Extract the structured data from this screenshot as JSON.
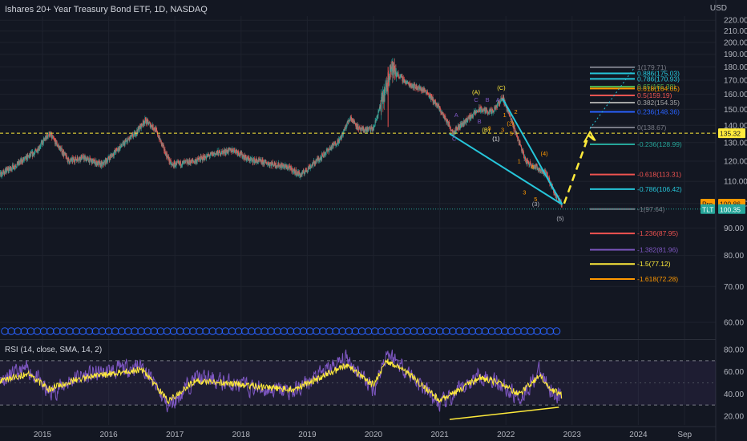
{
  "header": {
    "title": "Ishares 20+ Year Treasury Bond ETF, 1D, NASDAQ",
    "currency": "USD",
    "rsi_title": "RSI (14, close, SMA, 14, 2)"
  },
  "colors": {
    "background": "#131722",
    "grid": "#1e222d",
    "candle_up": "#26a69a",
    "candle_down": "#ef5350",
    "wedge": "#26c6da",
    "wave_orange": "#ff9800",
    "wave_yellow": "#ffeb3b",
    "wave_purple": "#7e57c2",
    "rsi_line": "#7e57c2",
    "rsi_ma": "#ffeb3b",
    "projection": "#ffeb3b",
    "last_price_tag": "#26a69a",
    "pre_tag": "#ff9800",
    "event_circles": "#2962ff"
  },
  "chart_data": [
    {
      "type": "line",
      "title": "Ishares 20+ Year Treasury Bond ETF, 1D, NASDAQ",
      "style": "candlestick",
      "x_axis_labels": [
        "2015",
        "2016",
        "2017",
        "2018",
        "2019",
        "2020",
        "2021",
        "2022",
        "2023",
        "2024",
        "Sep"
      ],
      "y_ticks": [
        60,
        70,
        80,
        90,
        100,
        110,
        120,
        130,
        140,
        150,
        160,
        170,
        180,
        190,
        200,
        210,
        220
      ],
      "ylim": [
        56,
        224
      ],
      "y_scale": "log",
      "grid": true,
      "series": [
        {
          "name": "",
          "x": [
            2014.2,
            2014.6,
            2014.9,
            2015.1,
            2015.4,
            2015.6,
            2015.9,
            2016.1,
            2016.4,
            2016.55,
            2016.7,
            2016.85,
            2016.95,
            2017.3,
            2017.6,
            2017.9,
            2018.1,
            2018.4,
            2018.7,
            2018.9,
            2019.2,
            2019.5,
            2019.65,
            2019.8,
            2020.0,
            2020.2,
            2020.25,
            2020.5,
            2020.8,
            2021.0,
            2021.2,
            2021.4,
            2021.6,
            2021.8,
            2021.95,
            2022.1,
            2022.3,
            2022.5,
            2022.6,
            2022.75,
            2022.85
          ],
          "y": [
            110,
            118,
            125,
            135,
            120,
            122,
            118,
            125,
            135,
            143,
            138,
            125,
            118,
            120,
            124,
            126,
            121,
            119,
            117,
            113,
            122,
            132,
            145,
            137,
            138,
            165,
            180,
            168,
            162,
            150,
            136,
            143,
            150,
            148,
            158,
            141,
            120,
            116,
            114,
            104,
            99
          ]
        }
      ],
      "horizontal_lines": [
        {
          "value": 135.32,
          "label": "135.32",
          "style": "dashed",
          "color": "#ffeb3b"
        }
      ],
      "price_tags": [
        {
          "label": "135.32",
          "value": 135.32
        },
        {
          "label": "Pre",
          "value": 100.86
        },
        {
          "label": "100.86",
          "value": 100.86
        },
        {
          "label": "TLT",
          "value": 100.35
        },
        {
          "label": "100.35",
          "value": 100.35
        }
      ],
      "fib_retracement_upper": [
        {
          "label": "1(179.71)",
          "value": 179.71,
          "color": "#787b86"
        },
        {
          "label": "0.886(175.03)",
          "value": 175.03,
          "color": "#26c6da"
        },
        {
          "label": "0.786(170.93)",
          "value": 170.93,
          "color": "#26c6da"
        },
        {
          "label": "0.65(165.38)",
          "value": 165.38,
          "color": "#4caf50"
        },
        {
          "label": "0.618(164.05)",
          "value": 164.05,
          "color": "#ff9800"
        },
        {
          "label": "0.5(159.19)",
          "value": 159.19,
          "color": "#ef5350"
        },
        {
          "label": "0.382(154.35)",
          "value": 154.35,
          "color": "#a5a5a5"
        },
        {
          "label": "0.236(148.36)",
          "value": 148.36,
          "color": "#2962ff"
        },
        {
          "label": "0(138.67)",
          "value": 138.67,
          "color": "#787b86"
        }
      ],
      "fib_extension_lower": [
        {
          "label": "-0.236(128.99)",
          "value": 128.99,
          "color": "#26a69a"
        },
        {
          "label": "-0.618(113.31)",
          "value": 113.31,
          "color": "#ef5350"
        },
        {
          "label": "-0.786(106.42)",
          "value": 106.42,
          "color": "#26c6da"
        },
        {
          "label": "-1(97.64)",
          "value": 97.64,
          "color": "#787b86"
        },
        {
          "label": "-1.236(87.95)",
          "value": 87.95,
          "color": "#ef5350"
        },
        {
          "label": "-1.382(81.96)",
          "value": 81.96,
          "color": "#7e57c2"
        },
        {
          "label": "-1.5(77.12)",
          "value": 77.12,
          "color": "#ffeb3b"
        },
        {
          "label": "-1.618(72.28)",
          "value": 72.28,
          "color": "#ff9800"
        }
      ],
      "wave_labels": [
        "(A)",
        "(C)",
        "(B)",
        "C",
        "B",
        "A",
        "A",
        "B",
        "C",
        "2",
        "1",
        "3",
        "1",
        "4",
        "3",
        "5",
        "(4)",
        "(5)",
        "3",
        "5",
        "(1)",
        "(3)",
        "(2)"
      ]
    },
    {
      "type": "line",
      "title": "RSI (14, close, SMA, 14, 2)",
      "y_ticks": [
        20,
        40,
        60,
        80
      ],
      "ylim": [
        12,
        88
      ],
      "bands": [
        30,
        70
      ],
      "series": [
        {
          "name": "",
          "x": [
            2014.2,
            2014.8,
            2015.1,
            2015.5,
            2016.0,
            2016.5,
            2016.9,
            2017.3,
            2017.8,
            2018.2,
            2018.8,
            2019.2,
            2019.6,
            2020.0,
            2020.2,
            2020.6,
            2021.0,
            2021.2,
            2021.6,
            2021.9,
            2022.2,
            2022.5,
            2022.7,
            2022.85
          ],
          "y": [
            50,
            62,
            40,
            55,
            60,
            66,
            28,
            55,
            50,
            45,
            42,
            58,
            72,
            44,
            78,
            55,
            30,
            38,
            58,
            50,
            36,
            60,
            42,
            36
          ]
        },
        {
          "name": "",
          "x": [
            2014.2,
            2014.8,
            2015.1,
            2015.5,
            2016.0,
            2016.5,
            2016.9,
            2017.3,
            2017.8,
            2018.2,
            2018.8,
            2019.2,
            2019.6,
            2020.0,
            2020.2,
            2020.6,
            2021.0,
            2021.2,
            2021.6,
            2021.9,
            2022.2,
            2022.5,
            2022.7,
            2022.85
          ],
          "y": [
            50,
            58,
            44,
            53,
            58,
            62,
            34,
            52,
            50,
            47,
            44,
            55,
            66,
            48,
            70,
            55,
            34,
            40,
            55,
            50,
            40,
            56,
            44,
            38
          ]
        }
      ],
      "divergence_line": {
        "x": [
          2021.15,
          2022.8
        ],
        "y": [
          17,
          28
        ]
      }
    }
  ]
}
